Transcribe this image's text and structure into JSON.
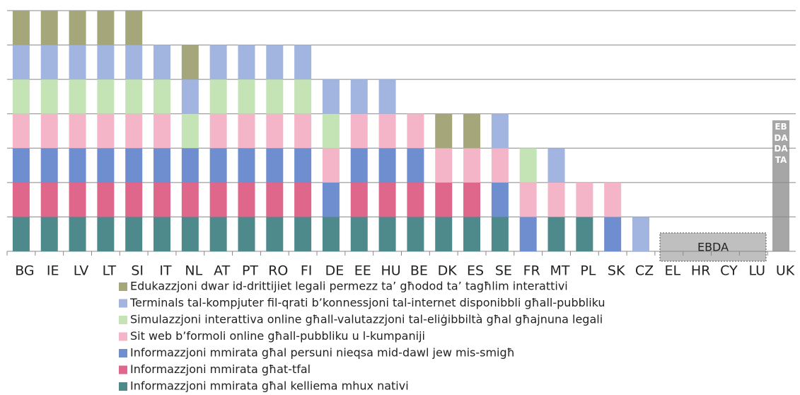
{
  "chart_data": {
    "type": "bar",
    "categories": [
      "BG",
      "IE",
      "LV",
      "LT",
      "SI",
      "IT",
      "NL",
      "AT",
      "PT",
      "RO",
      "FI",
      "DE",
      "EE",
      "HU",
      "BE",
      "DK",
      "ES",
      "SE",
      "FR",
      "MT",
      "PL",
      "SK",
      "CZ",
      "EL",
      "HR",
      "CY",
      "LU",
      "UK"
    ],
    "series": [
      {
        "name": "Edukazzjoni dwar id-drittijiet legali permezz ta’ għodod ta’ tagħlim interattivi",
        "color": "#a6a67b",
        "values": [
          1,
          1,
          1,
          1,
          1,
          0,
          1,
          0,
          0,
          0,
          0,
          0,
          0,
          0,
          0,
          1,
          1,
          0,
          0,
          0,
          0,
          0,
          0,
          null,
          null,
          null,
          null,
          null
        ]
      },
      {
        "name": "Terminals tal-kompjuter fil-qrati b’konnessjoni tal-internet disponibbli għall-pubbliku",
        "color": "#a2b4e0",
        "values": [
          1,
          1,
          1,
          1,
          1,
          1,
          1,
          1,
          1,
          1,
          1,
          1,
          1,
          1,
          0,
          0,
          0,
          1,
          0,
          1,
          0,
          0,
          1,
          null,
          null,
          null,
          null,
          null
        ]
      },
      {
        "name": "Simulazzjoni interattiva online għall-valutazzjoni tal-eliġibbiltà għal għajnuna legali",
        "color": "#c5e4b6",
        "values": [
          1,
          1,
          1,
          1,
          1,
          1,
          1,
          1,
          1,
          1,
          1,
          1,
          0,
          0,
          0,
          0,
          0,
          0,
          1,
          0,
          0,
          0,
          0,
          null,
          null,
          null,
          null,
          null
        ]
      },
      {
        "name": "Sit web b’formoli online għall-pubbliku u l-kumpaniji",
        "color": "#f5b5c9",
        "values": [
          1,
          1,
          1,
          1,
          1,
          1,
          0,
          1,
          1,
          1,
          1,
          1,
          1,
          1,
          1,
          1,
          1,
          1,
          1,
          1,
          1,
          1,
          0,
          null,
          null,
          null,
          null,
          null
        ]
      },
      {
        "name": "Informazzjoni mmirata għal persuni nieqsa mid-dawl jew mis-smigħ",
        "color": "#6f8ecf",
        "values": [
          1,
          1,
          1,
          1,
          1,
          1,
          1,
          1,
          1,
          1,
          1,
          1,
          1,
          1,
          1,
          0,
          0,
          1,
          1,
          0,
          0,
          1,
          0,
          null,
          null,
          null,
          null,
          null
        ]
      },
      {
        "name": "Informazzjoni mmirata għat-tfal",
        "color": "#df678b",
        "values": [
          1,
          1,
          1,
          1,
          1,
          1,
          1,
          1,
          1,
          1,
          1,
          0,
          1,
          1,
          1,
          1,
          1,
          0,
          0,
          0,
          0,
          0,
          0,
          null,
          null,
          null,
          null,
          null
        ]
      },
      {
        "name": "Informazzjoni mmirata għal kelliema mhux nativi",
        "color": "#4e8a8b",
        "values": [
          1,
          1,
          1,
          1,
          1,
          1,
          1,
          1,
          1,
          1,
          1,
          1,
          1,
          1,
          1,
          1,
          1,
          1,
          0,
          1,
          1,
          0,
          0,
          null,
          null,
          null,
          null,
          null
        ]
      }
    ],
    "annotations": [
      "EBDA",
      "EBDA DATA"
    ],
    "ylim": [
      0,
      7
    ],
    "yticks": [
      0,
      1,
      2,
      3,
      4,
      5,
      6,
      7
    ],
    "grid": true
  }
}
